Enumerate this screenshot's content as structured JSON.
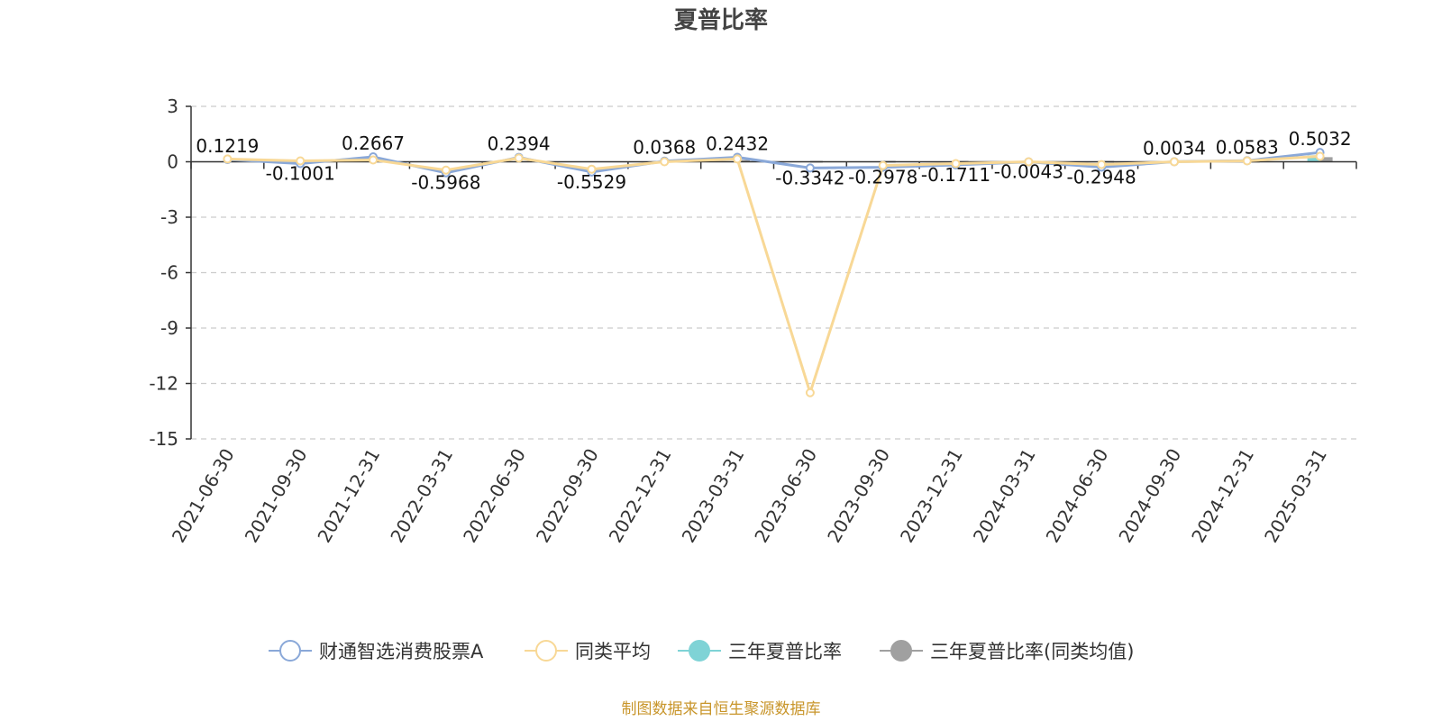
{
  "chart_data": {
    "type": "line",
    "title": "夏普比率",
    "source": "制图数据来自恒生聚源数据库",
    "categories": [
      "2021-06-30",
      "2021-09-30",
      "2021-12-31",
      "2022-03-31",
      "2022-06-30",
      "2022-09-30",
      "2022-12-31",
      "2023-03-31",
      "2023-06-30",
      "2023-09-30",
      "2023-12-31",
      "2024-03-31",
      "2024-06-30",
      "2024-09-30",
      "2024-12-31",
      "2025-03-31"
    ],
    "y_ticks": [
      "3",
      "0",
      "-3",
      "-6",
      "-9",
      "-12",
      "-15"
    ],
    "ylim": [
      -15,
      3
    ],
    "grid": true,
    "legend_position": "bottom",
    "series": [
      {
        "name": "财通智选消费股票A",
        "color": "#8aa8d8",
        "marker": "hollow-circle",
        "values": [
          0.1219,
          -0.1001,
          0.2667,
          -0.5968,
          0.2394,
          -0.5529,
          0.0368,
          0.2432,
          -0.3342,
          -0.2978,
          -0.1711,
          -0.0043,
          -0.2948,
          0.0034,
          0.0583,
          0.5032
        ],
        "value_labels": [
          "0.1219",
          "-0.1001",
          "0.2667",
          "-0.5968",
          "0.2394",
          "-0.5529",
          "0.0368",
          "0.2432",
          "-0.3342",
          "-0.2978",
          "-0.1711",
          "-0.0043",
          "-0.2948",
          "0.0034",
          "0.0583",
          "0.5032"
        ]
      },
      {
        "name": "同类平均",
        "color": "#f8d896",
        "marker": "hollow-circle",
        "values": [
          0.15,
          0.05,
          0.1,
          -0.45,
          0.2,
          -0.4,
          0.0,
          0.15,
          -12.5,
          -0.2,
          -0.1,
          0.0,
          -0.15,
          0.0,
          0.05,
          0.3
        ]
      },
      {
        "name": "三年夏普比率",
        "color": "#7fd3d6",
        "marker": "filled-circle",
        "bar_values": [
          0,
          0,
          0,
          0,
          0,
          0,
          0,
          0,
          0,
          0,
          0,
          0,
          0,
          0,
          0,
          0.35
        ]
      },
      {
        "name": "三年夏普比率(同类均值)",
        "color": "#a0a0a0",
        "marker": "filled-circle",
        "bar_values": [
          0,
          0,
          0,
          0,
          0,
          0,
          0,
          0.1,
          0.05,
          0.05,
          0.05,
          0.05,
          0.05,
          0.05,
          0.05,
          0.25
        ]
      }
    ]
  }
}
